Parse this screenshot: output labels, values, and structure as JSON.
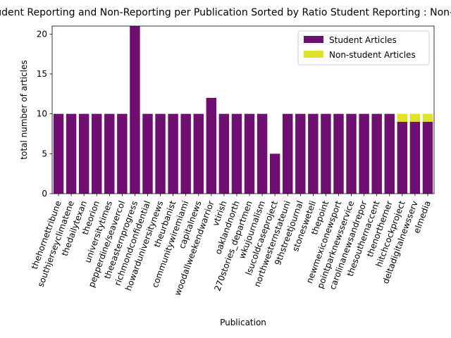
{
  "chart_data": {
    "type": "bar",
    "stacked": true,
    "title": "Student Reporting and Non-Reporting per Publication Sorted by Ratio Student Reporting : Non-Reporting",
    "xlabel": "Publication",
    "ylabel": "total number of articles",
    "ylim": [
      0,
      21
    ],
    "yticks": [
      0,
      5,
      10,
      15,
      20
    ],
    "legend_position": "upper-right",
    "grid": false,
    "categories": [
      "thehornettribune",
      "southjerseyclimatene",
      "thedailytexan",
      "theorion",
      "universitytimes",
      "pepperdine/seavercol",
      "theeasternprogress",
      "richmondconfidential",
      "howarduniversitynews",
      "theurbanist",
      "communitywiremiami",
      "capitalnews",
      "woodallweekendwarrior",
      "vtirish",
      "oaklandnorth",
      "270stories_departmen",
      "wkujournalism",
      "lsucoldcaseproject",
      "northwesternstateuni",
      "9thstreetjournal",
      "stonesweteli",
      "thepoint",
      "newmexiconewsport",
      "pointparknewsservice",
      "carolinanewsandrepor",
      "thesouthernaccent",
      "thenortherner",
      "hitchcockproject",
      "deltadigitalnewsserv",
      "elmedia"
    ],
    "series": [
      {
        "name": "Student Articles",
        "color": "#6f0f72",
        "values": [
          10,
          10,
          10,
          10,
          10,
          10,
          21,
          10,
          10,
          10,
          10,
          10,
          12,
          10,
          10,
          10,
          10,
          5,
          10,
          10,
          10,
          10,
          10,
          10,
          10,
          10,
          10,
          9,
          9,
          9
        ]
      },
      {
        "name": "Non-student Articles",
        "color": "#dfe22a",
        "values": [
          0,
          0,
          0,
          0,
          0,
          0,
          0,
          0,
          0,
          0,
          0,
          0,
          0,
          0,
          0,
          0,
          0,
          0,
          0,
          0,
          0,
          0,
          0,
          0,
          0,
          0,
          0,
          1,
          1,
          1
        ]
      }
    ]
  }
}
